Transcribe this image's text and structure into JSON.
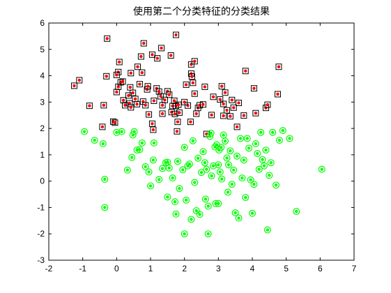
{
  "chart_data": {
    "type": "scatter",
    "title": "使用第二个分类特征的分类结果",
    "xlabel": "",
    "ylabel": "",
    "xlim": [
      -2,
      7
    ],
    "ylim": [
      -3,
      6
    ],
    "xticks": [
      "-2",
      "-1",
      "0",
      "1",
      "2",
      "3",
      "4",
      "5",
      "6",
      "7"
    ],
    "yticks": [
      "-3",
      "-2",
      "-1",
      "0",
      "1",
      "2",
      "3",
      "4",
      "5",
      "6"
    ],
    "grid": false,
    "legend": "none",
    "colors": {
      "class1_point": "#ff0000",
      "class1_marker": "#000000",
      "class2_point": "#00ff00",
      "class2_marker": "#00ff00",
      "axes": "#000000",
      "background": "#ffffff"
    },
    "series": [
      {
        "marker": "square",
        "points": [
          [
            -1.25,
            3.62
          ],
          [
            -1.1,
            3.83
          ],
          [
            -0.8,
            2.86
          ],
          [
            -0.42,
            2.06
          ],
          [
            -0.38,
            2.88
          ],
          [
            -0.3,
            3.98
          ],
          [
            -0.28,
            5.41
          ],
          [
            -0.1,
            2.26
          ],
          [
            -0.05,
            2.22
          ],
          [
            0.0,
            3.38
          ],
          [
            0.05,
            3.58
          ],
          [
            0.05,
            4.14
          ],
          [
            0.08,
            4.52
          ],
          [
            0.12,
            3.75
          ],
          [
            0.18,
            3.78
          ],
          [
            0.2,
            3.07
          ],
          [
            0.25,
            2.88
          ],
          [
            0.35,
            3.25
          ],
          [
            0.38,
            2.95
          ],
          [
            0.4,
            3.56
          ],
          [
            0.42,
            2.8
          ],
          [
            0.42,
            4.1
          ],
          [
            0.48,
            3.35
          ],
          [
            0.55,
            3.12
          ],
          [
            0.6,
            2.92
          ],
          [
            0.62,
            4.34
          ],
          [
            0.68,
            3.68
          ],
          [
            0.72,
            4.73
          ],
          [
            0.75,
            4.12
          ],
          [
            0.78,
            3.02
          ],
          [
            0.8,
            5.23
          ],
          [
            0.85,
            2.88
          ],
          [
            0.9,
            3.48
          ],
          [
            0.92,
            3.6
          ],
          [
            0.95,
            2.53
          ],
          [
            1.05,
            4.8
          ],
          [
            1.05,
            2.18
          ],
          [
            1.08,
            1.95
          ],
          [
            1.1,
            3.05
          ],
          [
            1.18,
            3.52
          ],
          [
            1.2,
            4.66
          ],
          [
            1.25,
            3.4
          ],
          [
            1.3,
            3.22
          ],
          [
            1.32,
            5.05
          ],
          [
            1.35,
            2.88
          ],
          [
            1.35,
            2.56
          ],
          [
            1.42,
            3.08
          ],
          [
            1.5,
            3.41
          ],
          [
            1.55,
            3.28
          ],
          [
            1.6,
            4.77
          ],
          [
            1.62,
            2.62
          ],
          [
            1.65,
            2.85
          ],
          [
            1.7,
            3.05
          ],
          [
            1.72,
            2.55
          ],
          [
            1.75,
            2.86
          ],
          [
            1.78,
            1.89
          ],
          [
            1.8,
            2.25
          ],
          [
            1.82,
            2.9
          ],
          [
            1.85,
            2.6
          ],
          [
            2.05,
            3.66
          ],
          [
            2.1,
            2.87
          ],
          [
            2.18,
            2.25
          ],
          [
            2.2,
            4.43
          ],
          [
            2.2,
            4.08
          ],
          [
            2.22,
            3.97
          ],
          [
            2.25,
            3.73
          ],
          [
            2.3,
            3.32
          ],
          [
            2.35,
            2.56
          ],
          [
            2.4,
            2.78
          ],
          [
            2.45,
            2.88
          ],
          [
            2.55,
            2.91
          ],
          [
            2.6,
            3.58
          ],
          [
            2.65,
            1.79
          ],
          [
            2.8,
            2.51
          ],
          [
            2.85,
            3.2
          ],
          [
            3.05,
            3.1
          ],
          [
            3.1,
            3.6
          ],
          [
            3.15,
            2.48
          ],
          [
            3.15,
            2.93
          ],
          [
            3.2,
            3.36
          ],
          [
            3.25,
            2.69
          ],
          [
            3.35,
            2.46
          ],
          [
            3.4,
            3.08
          ],
          [
            3.45,
            2.79
          ],
          [
            3.55,
            2.06
          ],
          [
            3.6,
            2.97
          ],
          [
            3.75,
            2.49
          ],
          [
            3.8,
            4.18
          ],
          [
            4.05,
            3.52
          ],
          [
            4.1,
            2.58
          ],
          [
            4.4,
            2.78
          ],
          [
            4.45,
            2.9
          ],
          [
            4.75,
            3.3
          ],
          [
            4.78,
            4.34
          ],
          [
            1.75,
            5.55
          ],
          [
            2.3,
            4.55
          ],
          [
            2.0,
            3.0
          ],
          [
            0.0,
            4.03
          ]
        ]
      },
      {
        "marker": "circle",
        "points": [
          [
            -0.95,
            1.88
          ],
          [
            -0.65,
            1.55
          ],
          [
            -0.4,
            1.42
          ],
          [
            -0.35,
            0.07
          ],
          [
            -0.35,
            -1.0
          ],
          [
            0.0,
            1.85
          ],
          [
            0.15,
            1.88
          ],
          [
            0.32,
            0.42
          ],
          [
            0.45,
            0.9
          ],
          [
            0.48,
            1.75
          ],
          [
            0.52,
            1.88
          ],
          [
            0.6,
            1.18
          ],
          [
            0.68,
            1.2
          ],
          [
            0.75,
            1.45
          ],
          [
            0.85,
            0.55
          ],
          [
            0.95,
            0.35
          ],
          [
            1.0,
            -0.18
          ],
          [
            1.08,
            0.8
          ],
          [
            1.1,
            1.45
          ],
          [
            1.25,
            0.06
          ],
          [
            1.35,
            0.48
          ],
          [
            1.45,
            0.7
          ],
          [
            1.5,
            -0.6
          ],
          [
            1.55,
            0.5
          ],
          [
            1.65,
            0.12
          ],
          [
            1.72,
            -0.78
          ],
          [
            1.75,
            -1.25
          ],
          [
            1.8,
            0.75
          ],
          [
            1.85,
            -0.28
          ],
          [
            1.95,
            0.43
          ],
          [
            2.0,
            1.28
          ],
          [
            2.05,
            -0.72
          ],
          [
            2.1,
            0.58
          ],
          [
            2.15,
            0.65
          ],
          [
            2.2,
            -1.45
          ],
          [
            2.25,
            1.53
          ],
          [
            2.3,
            -0.05
          ],
          [
            2.35,
            -1.12
          ],
          [
            2.4,
            0.87
          ],
          [
            2.45,
            -1.26
          ],
          [
            2.5,
            0.33
          ],
          [
            2.55,
            1.12
          ],
          [
            2.6,
            0.7
          ],
          [
            2.62,
            -0.68
          ],
          [
            2.65,
            0.45
          ],
          [
            2.7,
            -0.95
          ],
          [
            2.75,
            1.7
          ],
          [
            2.78,
            1.82
          ],
          [
            2.8,
            0.2
          ],
          [
            2.85,
            0.58
          ],
          [
            2.9,
            1.3
          ],
          [
            2.92,
            -0.85
          ],
          [
            2.95,
            1.38
          ],
          [
            3.0,
            0.62
          ],
          [
            3.02,
            1.18
          ],
          [
            3.05,
            0.35
          ],
          [
            3.08,
            1.28
          ],
          [
            3.1,
            0.08
          ],
          [
            3.15,
            1.75
          ],
          [
            3.2,
            1.52
          ],
          [
            3.25,
            0.88
          ],
          [
            3.28,
            -0.42
          ],
          [
            3.3,
            0.62
          ],
          [
            3.35,
            1.15
          ],
          [
            3.4,
            -0.12
          ],
          [
            3.45,
            0.42
          ],
          [
            3.5,
            -1.2
          ],
          [
            3.55,
            0.95
          ],
          [
            3.6,
            -1.4
          ],
          [
            3.65,
            1.62
          ],
          [
            3.7,
            0.12
          ],
          [
            3.75,
            0.8
          ],
          [
            3.8,
            -0.62
          ],
          [
            3.85,
            1.62
          ],
          [
            3.9,
            1.25
          ],
          [
            3.95,
            0.05
          ],
          [
            4.0,
            -1.22
          ],
          [
            4.05,
            -0.12
          ],
          [
            4.1,
            1.42
          ],
          [
            4.15,
            1.05
          ],
          [
            4.2,
            0.45
          ],
          [
            4.25,
            1.85
          ],
          [
            4.3,
            0.82
          ],
          [
            4.35,
            0.58
          ],
          [
            4.4,
            1.18
          ],
          [
            4.45,
            -1.85
          ],
          [
            4.5,
            0.22
          ],
          [
            4.55,
            0.7
          ],
          [
            4.6,
            1.85
          ],
          [
            4.7,
            -0.15
          ],
          [
            4.8,
            1.55
          ],
          [
            4.9,
            1.92
          ],
          [
            5.1,
            1.62
          ],
          [
            5.3,
            -1.15
          ],
          [
            6.05,
            0.45
          ],
          [
            2.0,
            -2.0
          ],
          [
            2.7,
            -2.0
          ],
          [
            3.0,
            -0.85
          ],
          [
            1.5,
            0.72
          ]
        ]
      }
    ]
  }
}
